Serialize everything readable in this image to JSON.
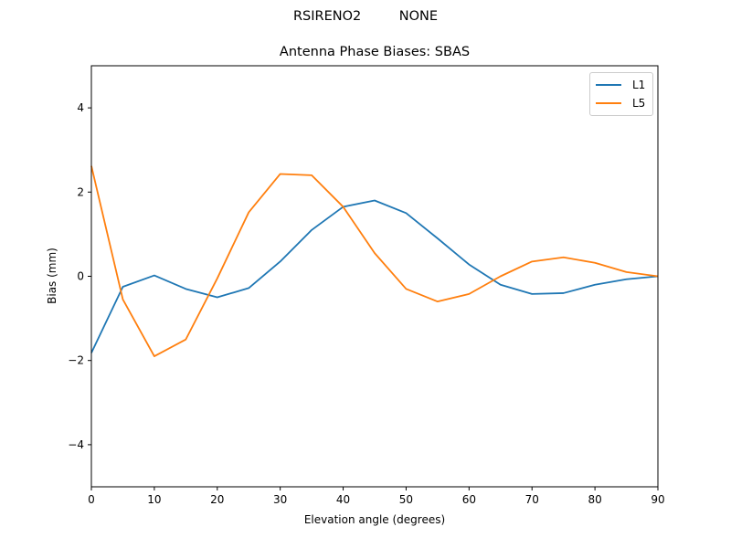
{
  "figure": {
    "suptitle": "RSIRENO2         NONE",
    "title": "Antenna Phase Biases: SBAS",
    "xlabel": "Elevation angle (degrees)",
    "ylabel": "Bias (mm)"
  },
  "legend": [
    {
      "label": "L1",
      "color": "#1f77b4"
    },
    {
      "label": "L5",
      "color": "#ff7f0e"
    }
  ],
  "chart_data": {
    "type": "line",
    "title": "Antenna Phase Biases: SBAS",
    "suptitle": "RSIRENO2         NONE",
    "xlabel": "Elevation angle (degrees)",
    "ylabel": "Bias (mm)",
    "xlim": [
      0,
      90
    ],
    "ylim": [
      -5,
      5
    ],
    "xticks": [
      0,
      10,
      20,
      30,
      40,
      50,
      60,
      70,
      80,
      90
    ],
    "yticks": [
      -4,
      -2,
      0,
      2,
      4
    ],
    "grid": false,
    "legend_position": "upper right",
    "x": [
      0,
      5,
      10,
      15,
      20,
      25,
      30,
      35,
      40,
      45,
      50,
      55,
      60,
      65,
      70,
      75,
      80,
      85,
      90
    ],
    "series": [
      {
        "name": "L1",
        "color": "#1f77b4",
        "values": [
          -1.82,
          -0.25,
          0.02,
          -0.3,
          -0.5,
          -0.28,
          0.35,
          1.1,
          1.65,
          1.8,
          1.5,
          0.9,
          0.28,
          -0.2,
          -0.42,
          -0.4,
          -0.2,
          -0.07,
          0.0
        ]
      },
      {
        "name": "L5",
        "color": "#ff7f0e",
        "values": [
          2.62,
          -0.55,
          -1.9,
          -1.5,
          -0.05,
          1.52,
          2.43,
          2.4,
          1.65,
          0.55,
          -0.3,
          -0.6,
          -0.42,
          0.0,
          0.35,
          0.45,
          0.32,
          0.1,
          0.0
        ]
      }
    ]
  }
}
